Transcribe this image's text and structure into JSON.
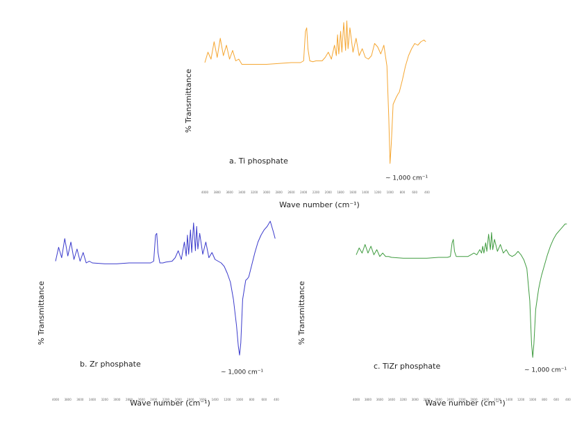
{
  "chart_data": [
    {
      "type": "line",
      "color": "#f5a631",
      "xlabel": "Wave number (cm⁻¹)",
      "ylabel": "% Transmittance",
      "annotations": [
        "a. Ti phosphate",
        "~ 1,000 cm⁻¹"
      ],
      "xlim": [
        4000,
        400
      ],
      "ylim": [
        0,
        100
      ],
      "xticks": [
        4000,
        3800,
        3600,
        3400,
        3200,
        3000,
        2800,
        2600,
        2400,
        2200,
        2000,
        1800,
        1600,
        1400,
        1200,
        1000,
        800,
        600,
        400
      ],
      "x": [
        4000,
        3950,
        3900,
        3850,
        3800,
        3750,
        3700,
        3650,
        3600,
        3550,
        3500,
        3450,
        3400,
        3200,
        3000,
        2800,
        2600,
        2450,
        2400,
        2370,
        2350,
        2330,
        2300,
        2250,
        2200,
        2100,
        2050,
        2000,
        1950,
        1900,
        1870,
        1850,
        1830,
        1800,
        1780,
        1750,
        1720,
        1700,
        1680,
        1650,
        1600,
        1550,
        1500,
        1450,
        1400,
        1350,
        1300,
        1250,
        1200,
        1150,
        1100,
        1050,
        1020,
        1000,
        980,
        950,
        900,
        870,
        850,
        800,
        750,
        700,
        650,
        600,
        550,
        500,
        450,
        420
      ],
      "values": [
        72,
        78,
        74,
        84,
        75,
        86,
        76,
        82,
        74,
        79,
        73,
        74,
        71,
        71,
        71,
        71.5,
        72,
        72,
        73,
        90,
        92,
        80,
        73,
        72.5,
        73,
        73,
        75,
        78,
        74,
        82,
        76,
        88,
        77,
        90,
        78,
        95,
        79,
        96,
        80,
        92,
        78,
        86,
        76,
        80,
        75,
        74,
        76,
        83,
        81,
        77,
        82,
        70,
        40,
        14,
        25,
        48,
        52,
        54,
        55,
        62,
        70,
        76,
        80,
        83,
        82,
        84,
        85,
        84
      ]
    },
    {
      "type": "line",
      "color": "#3a3acc",
      "xlabel": "Wave number (cm⁻¹)",
      "ylabel": "% Transmittance",
      "annotations": [
        "b. Zr phosphate",
        "~ 1,000 cm⁻¹"
      ],
      "xlim": [
        4000,
        400
      ],
      "ylim": [
        0,
        100
      ],
      "xticks": [
        4000,
        3800,
        3600,
        3400,
        3200,
        3000,
        2800,
        2600,
        2400,
        2200,
        2000,
        1800,
        1600,
        1400,
        1200,
        1000,
        800,
        600,
        400
      ],
      "x": [
        4000,
        3950,
        3900,
        3850,
        3800,
        3750,
        3700,
        3650,
        3600,
        3550,
        3500,
        3450,
        3400,
        3200,
        3000,
        2800,
        2600,
        2450,
        2400,
        2370,
        2350,
        2330,
        2300,
        2250,
        2200,
        2100,
        2050,
        2000,
        1950,
        1900,
        1870,
        1850,
        1830,
        1800,
        1780,
        1750,
        1720,
        1700,
        1680,
        1650,
        1600,
        1550,
        1500,
        1450,
        1400,
        1350,
        1300,
        1250,
        1200,
        1150,
        1100,
        1050,
        1020,
        1000,
        980,
        950,
        900,
        870,
        850,
        800,
        750,
        700,
        650,
        600,
        550,
        500,
        450,
        420
      ],
      "values": [
        77,
        85,
        79,
        90,
        80,
        88,
        78,
        84,
        77,
        82,
        76,
        77,
        76,
        75.5,
        75.5,
        76,
        76,
        76,
        77,
        92,
        93,
        82,
        76,
        76,
        76.5,
        77,
        79,
        83,
        78,
        88,
        80,
        92,
        81,
        95,
        82,
        99,
        83,
        97,
        84,
        93,
        81,
        88,
        79,
        82,
        78,
        77,
        76,
        74,
        70,
        65,
        55,
        40,
        28,
        23,
        30,
        55,
        66,
        67,
        68,
        75,
        82,
        88,
        92,
        95,
        97,
        100,
        94,
        90
      ]
    },
    {
      "type": "line",
      "color": "#3f9b3f",
      "xlabel": "Wave number (cm⁻¹)",
      "ylabel": "% Transmittance",
      "annotations": [
        "c. TiZr phosphate",
        "~ 1,000 cm⁻¹"
      ],
      "xlim": [
        4000,
        400
      ],
      "ylim": [
        0,
        100
      ],
      "xticks": [
        4000,
        3800,
        3600,
        3400,
        3200,
        3000,
        2800,
        2600,
        2400,
        2200,
        2000,
        1800,
        1600,
        1400,
        1200,
        1000,
        800,
        600,
        400
      ],
      "x": [
        4000,
        3950,
        3900,
        3850,
        3800,
        3750,
        3700,
        3650,
        3600,
        3550,
        3500,
        3450,
        3400,
        3200,
        3000,
        2800,
        2600,
        2450,
        2400,
        2370,
        2350,
        2330,
        2300,
        2250,
        2200,
        2100,
        2050,
        2000,
        1950,
        1900,
        1870,
        1850,
        1830,
        1800,
        1780,
        1750,
        1720,
        1700,
        1680,
        1650,
        1600,
        1550,
        1500,
        1450,
        1400,
        1350,
        1300,
        1250,
        1200,
        1150,
        1100,
        1050,
        1020,
        1000,
        980,
        950,
        900,
        870,
        850,
        800,
        750,
        700,
        650,
        600,
        550,
        500,
        450,
        420
      ],
      "values": [
        82,
        86,
        83,
        88,
        83,
        87,
        82,
        85,
        81,
        83,
        81,
        81,
        80.5,
        80,
        80,
        80,
        80.5,
        80.5,
        81,
        89,
        91,
        84,
        81,
        81,
        81,
        81,
        82,
        83,
        82,
        85,
        83,
        87,
        83,
        89,
        84,
        94,
        85,
        95,
        85,
        91,
        84,
        88,
        83,
        85,
        82,
        81,
        82,
        84,
        82,
        79,
        74,
        55,
        30,
        22,
        30,
        50,
        62,
        67,
        70,
        76,
        82,
        87,
        91,
        94,
        96,
        98,
        100,
        100
      ]
    }
  ]
}
